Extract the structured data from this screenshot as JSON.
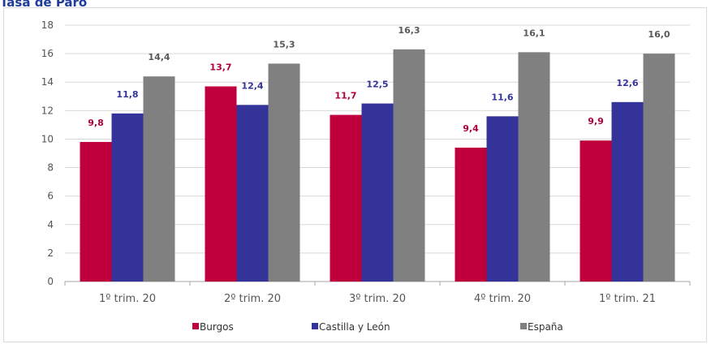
{
  "chart_data": {
    "type": "bar",
    "title": "Tasa de Paro",
    "categories": [
      "1º trim. 20",
      "2º trim. 20",
      "3º trim. 20",
      "4º trim. 20",
      "1º trim. 21"
    ],
    "series": [
      {
        "name": "Burgos",
        "values": [
          9.8,
          13.7,
          11.7,
          9.4,
          9.9
        ],
        "labels": [
          "9,8",
          "13,7",
          "11,7",
          "9,4",
          "9,9"
        ],
        "color": "#c0003c"
      },
      {
        "name": "Castilla y León",
        "values": [
          11.8,
          12.4,
          12.5,
          11.6,
          12.6
        ],
        "labels": [
          "11,8",
          "12,4",
          "12,5",
          "11,6",
          "12,6"
        ],
        "color": "#333399"
      },
      {
        "name": "España",
        "values": [
          14.4,
          15.3,
          16.3,
          16.1,
          16.0
        ],
        "labels": [
          "14,4",
          "15,3",
          "16,3",
          "16,1",
          "16,0"
        ],
        "color": "#808080"
      }
    ],
    "yticks": [
      0,
      2,
      4,
      6,
      8,
      10,
      12,
      14,
      16,
      18
    ],
    "ylim": [
      0,
      18
    ],
    "grid": true,
    "legend": "bottom",
    "label_colors": [
      "#b0003a",
      "#333399",
      "#595959"
    ]
  }
}
